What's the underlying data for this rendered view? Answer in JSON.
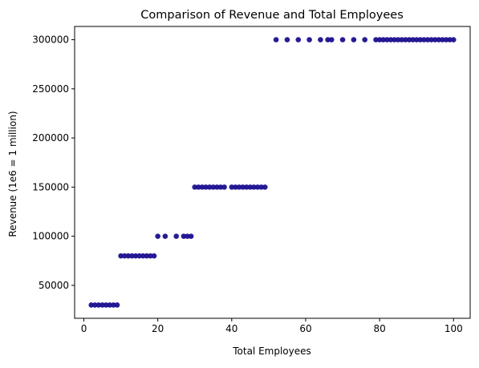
{
  "chart_data": {
    "type": "scatter",
    "title": "Comparison of Revenue and Total Employees",
    "xlabel": "Total Employees",
    "ylabel": "Revenue (1e6 = 1 million)",
    "xlim": [
      -2.5,
      104.5
    ],
    "ylim": [
      16500,
      313500
    ],
    "x_ticks": [
      0,
      20,
      40,
      60,
      80,
      100
    ],
    "y_ticks": [
      50000,
      100000,
      150000,
      200000,
      250000,
      300000
    ],
    "grid": false,
    "marker_color": "#1b0f8f",
    "series": [
      {
        "points": [
          [
            2,
            30000
          ],
          [
            3,
            30000
          ],
          [
            4,
            30000
          ],
          [
            5,
            30000
          ],
          [
            6,
            30000
          ],
          [
            7,
            30000
          ],
          [
            8,
            30000
          ],
          [
            9,
            30000
          ],
          [
            10,
            80000
          ],
          [
            11,
            80000
          ],
          [
            12,
            80000
          ],
          [
            13,
            80000
          ],
          [
            14,
            80000
          ],
          [
            15,
            80000
          ],
          [
            16,
            80000
          ],
          [
            17,
            80000
          ],
          [
            18,
            80000
          ],
          [
            19,
            80000
          ],
          [
            20,
            100000
          ],
          [
            22,
            100000
          ],
          [
            25,
            100000
          ],
          [
            27,
            100000
          ],
          [
            28,
            100000
          ],
          [
            29,
            100000
          ],
          [
            30,
            150000
          ],
          [
            31,
            150000
          ],
          [
            32,
            150000
          ],
          [
            33,
            150000
          ],
          [
            34,
            150000
          ],
          [
            35,
            150000
          ],
          [
            36,
            150000
          ],
          [
            37,
            150000
          ],
          [
            38,
            150000
          ],
          [
            40,
            150000
          ],
          [
            41,
            150000
          ],
          [
            42,
            150000
          ],
          [
            43,
            150000
          ],
          [
            44,
            150000
          ],
          [
            45,
            150000
          ],
          [
            46,
            150000
          ],
          [
            47,
            150000
          ],
          [
            48,
            150000
          ],
          [
            49,
            150000
          ],
          [
            52,
            300000
          ],
          [
            55,
            300000
          ],
          [
            58,
            300000
          ],
          [
            61,
            300000
          ],
          [
            64,
            300000
          ],
          [
            66,
            300000
          ],
          [
            67,
            300000
          ],
          [
            70,
            300000
          ],
          [
            73,
            300000
          ],
          [
            76,
            300000
          ],
          [
            79,
            300000
          ],
          [
            80,
            300000
          ],
          [
            81,
            300000
          ],
          [
            82,
            300000
          ],
          [
            83,
            300000
          ],
          [
            84,
            300000
          ],
          [
            85,
            300000
          ],
          [
            86,
            300000
          ],
          [
            87,
            300000
          ],
          [
            88,
            300000
          ],
          [
            89,
            300000
          ],
          [
            90,
            300000
          ],
          [
            91,
            300000
          ],
          [
            92,
            300000
          ],
          [
            93,
            300000
          ],
          [
            94,
            300000
          ],
          [
            95,
            300000
          ],
          [
            96,
            300000
          ],
          [
            97,
            300000
          ],
          [
            98,
            300000
          ],
          [
            99,
            300000
          ],
          [
            100,
            300000
          ]
        ]
      }
    ]
  }
}
